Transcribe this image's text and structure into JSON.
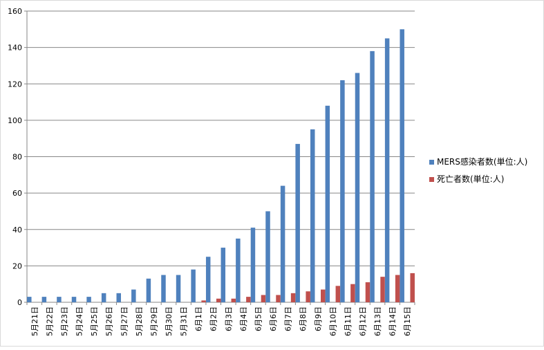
{
  "chart_data": {
    "type": "bar",
    "title": "",
    "xlabel": "",
    "ylabel": "",
    "ylim": [
      0,
      160
    ],
    "yticks": [
      0,
      20,
      40,
      60,
      80,
      100,
      120,
      140,
      160
    ],
    "grid": true,
    "legend_position": "right",
    "categories": [
      "5月21日",
      "5月22日",
      "5月23日",
      "5月24日",
      "5月25日",
      "5月26日",
      "5月27日",
      "5月28日",
      "5月29日",
      "5月30日",
      "5月31日",
      "6月1日",
      "6月2日",
      "6月3日",
      "6月4日",
      "6月5日",
      "6月6日",
      "6月7日",
      "6月8日",
      "6月9日",
      "6月10日",
      "6月11日",
      "6月12日",
      "6月13日",
      "6月14日",
      "6月15日"
    ],
    "series": [
      {
        "name": "MERS感染者数(単位:人)",
        "color": "#4f81bd",
        "values": [
          3,
          3,
          3,
          3,
          3,
          5,
          5,
          7,
          13,
          15,
          15,
          18,
          25,
          30,
          35,
          41,
          50,
          64,
          87,
          95,
          108,
          122,
          126,
          138,
          145,
          150
        ]
      },
      {
        "name": "死亡者数(単位:人)",
        "color": "#c0504d",
        "values": [
          0,
          0,
          0,
          0,
          0,
          0,
          0,
          0,
          0,
          0,
          0,
          1,
          2,
          2,
          3,
          4,
          4,
          5,
          6,
          7,
          9,
          10,
          11,
          14,
          15,
          16
        ]
      }
    ]
  }
}
